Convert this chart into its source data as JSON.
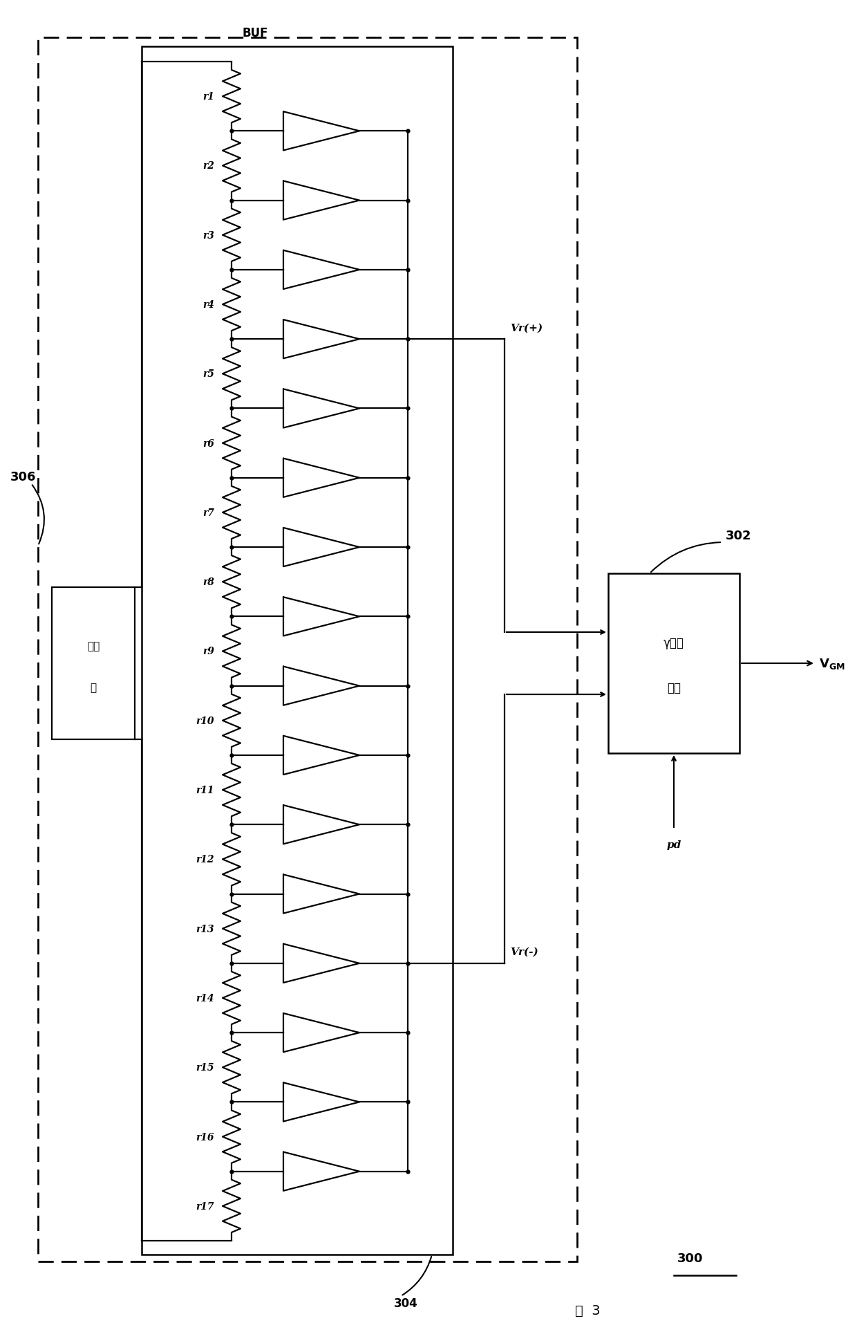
{
  "fig_width": 12.4,
  "fig_height": 19.4,
  "dpi": 100,
  "bg_color": "#ffffff",
  "line_color": "#000000",
  "resistor_labels": [
    "r1",
    "r2",
    "r3",
    "r4",
    "r5",
    "r6",
    "r7",
    "r8",
    "r9",
    "r10",
    "r11",
    "r12",
    "r13",
    "r14",
    "r15",
    "r16",
    "r17"
  ],
  "num_resistors": 17,
  "buf_label": "BUF",
  "box_label_line1": "γ校正",
  "box_label_line2": "电路",
  "box_number": "302",
  "voltage_source_label_line1": "电压",
  "voltage_source_label_line2": "源",
  "label_306": "306",
  "label_304": "304",
  "label_300": "300",
  "label_vr_plus": "Vr(+)",
  "label_vr_minus": "Vr(-)",
  "label_vgm": "VGM",
  "label_pd": "pd",
  "fig_label": "图  3",
  "vr_plus_tap": 4,
  "vr_minus_tap": 13
}
